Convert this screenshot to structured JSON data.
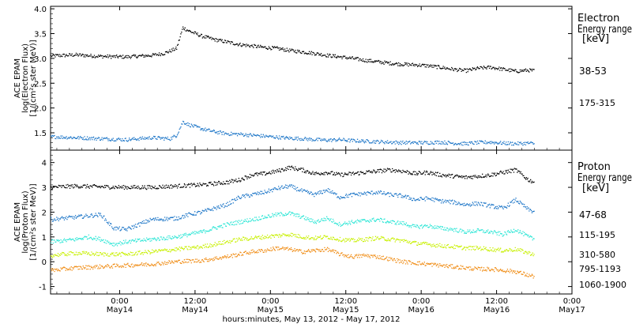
{
  "xlabel": "hours:minutes, May 13, 2012 - May 17, 2012",
  "x_ticks": [
    {
      "hours": 11,
      "time": "0:00",
      "date": "May14"
    },
    {
      "hours": 23,
      "time": "12:00",
      "date": "May14"
    },
    {
      "hours": 35,
      "time": "0:00",
      "date": "May15"
    },
    {
      "hours": 47,
      "time": "12:00",
      "date": "May15"
    },
    {
      "hours": 59,
      "time": "0:00",
      "date": "May16"
    },
    {
      "hours": 71,
      "time": "12:00",
      "date": "May16"
    },
    {
      "hours": 83,
      "time": "0:00",
      "date": "May17"
    }
  ],
  "colors": {
    "black": "#000000",
    "blue": "#1f77c8",
    "cyan": "#2ee6d6",
    "yellowgreen": "#c8f000",
    "orange": "#f08c14"
  },
  "chart_data": [
    {
      "type": "scatter",
      "name": "electron-panel",
      "ylabel": [
        "ACE EPAM",
        "log(Electron Flux)",
        "[1/(cm²s ster MeV)]"
      ],
      "ylim": [
        1.15,
        4.05
      ],
      "y_ticks": [
        "1.5",
        "2.0",
        "2.5",
        "3.0",
        "3.5",
        "4.0"
      ],
      "legend_title": [
        "Electron",
        "Energy range",
        "[keV]"
      ],
      "x_start_hours": 11,
      "x_range_hours": [
        0,
        83
      ],
      "series": [
        {
          "name": "38-53",
          "color": "#000000",
          "x": [
            0,
            4,
            8,
            12,
            16,
            18,
            20,
            21,
            22,
            24,
            26,
            28,
            30,
            32,
            34,
            36,
            38,
            40,
            42,
            44,
            46,
            48,
            50,
            52,
            54,
            56,
            58,
            60,
            62,
            64,
            66,
            68,
            70,
            72,
            74,
            76,
            77
          ],
          "y": [
            3.05,
            3.07,
            3.04,
            3.03,
            3.06,
            3.1,
            3.2,
            3.62,
            3.55,
            3.45,
            3.38,
            3.33,
            3.28,
            3.25,
            3.22,
            3.2,
            3.16,
            3.13,
            3.1,
            3.06,
            3.03,
            3.0,
            2.96,
            2.93,
            2.9,
            2.88,
            2.87,
            2.85,
            2.82,
            2.78,
            2.75,
            2.8,
            2.82,
            2.78,
            2.74,
            2.76,
            2.75
          ]
        },
        {
          "name": "175-315",
          "color": "#1f77c8",
          "x": [
            0,
            4,
            8,
            12,
            16,
            19,
            20,
            21,
            22,
            24,
            26,
            28,
            30,
            32,
            34,
            36,
            38,
            40,
            42,
            44,
            46,
            48,
            50,
            52,
            54,
            56,
            58,
            60,
            62,
            64,
            66,
            68,
            70,
            72,
            74,
            76,
            77
          ],
          "y": [
            1.42,
            1.4,
            1.38,
            1.36,
            1.4,
            1.38,
            1.45,
            1.72,
            1.66,
            1.58,
            1.52,
            1.48,
            1.47,
            1.45,
            1.43,
            1.41,
            1.39,
            1.38,
            1.36,
            1.35,
            1.36,
            1.34,
            1.33,
            1.32,
            1.31,
            1.3,
            1.3,
            1.3,
            1.31,
            1.29,
            1.28,
            1.3,
            1.31,
            1.29,
            1.28,
            1.29,
            1.28
          ]
        }
      ]
    },
    {
      "type": "scatter",
      "name": "proton-panel",
      "ylabel": [
        "ACE EPAM",
        "log(Proton Flux)",
        "[1/(cm²s ster MeV)]"
      ],
      "ylim": [
        -1.3,
        4.5
      ],
      "y_ticks": [
        "-1",
        "0",
        "1",
        "2",
        "3",
        "4"
      ],
      "legend_title": [
        "Proton",
        "Energy range",
        "[keV]"
      ],
      "x_start_hours": 11,
      "x_range_hours": [
        0,
        83
      ],
      "series": [
        {
          "name": "47-68",
          "color": "#000000",
          "x": [
            0,
            4,
            8,
            12,
            16,
            20,
            24,
            28,
            30,
            32,
            34,
            36,
            38,
            40,
            42,
            44,
            46,
            48,
            50,
            52,
            54,
            56,
            58,
            60,
            62,
            64,
            66,
            68,
            70,
            72,
            74,
            76,
            77
          ],
          "y": [
            3.0,
            3.05,
            3.02,
            3.0,
            3.0,
            3.05,
            3.1,
            3.2,
            3.3,
            3.5,
            3.55,
            3.65,
            3.8,
            3.7,
            3.55,
            3.6,
            3.5,
            3.55,
            3.6,
            3.65,
            3.7,
            3.65,
            3.55,
            3.6,
            3.5,
            3.45,
            3.4,
            3.45,
            3.5,
            3.6,
            3.7,
            3.3,
            3.2
          ]
        },
        {
          "name": "115-195",
          "color": "#1f77c8",
          "x": [
            0,
            4,
            8,
            9,
            10,
            12,
            16,
            20,
            22,
            24,
            28,
            30,
            32,
            34,
            36,
            38,
            40,
            42,
            44,
            46,
            48,
            50,
            52,
            54,
            56,
            58,
            60,
            62,
            64,
            66,
            68,
            70,
            72,
            74,
            76,
            77
          ],
          "y": [
            1.7,
            1.8,
            1.9,
            1.6,
            1.35,
            1.3,
            1.7,
            1.75,
            1.9,
            2.0,
            2.3,
            2.6,
            2.7,
            2.8,
            2.95,
            3.05,
            2.85,
            2.7,
            2.9,
            2.6,
            2.7,
            2.75,
            2.8,
            2.7,
            2.65,
            2.5,
            2.55,
            2.45,
            2.4,
            2.3,
            2.35,
            2.25,
            2.15,
            2.5,
            2.1,
            2.0
          ]
        },
        {
          "name": "310-580",
          "color": "#2ee6d6",
          "x": [
            0,
            4,
            6,
            8,
            10,
            12,
            16,
            20,
            24,
            28,
            30,
            32,
            34,
            36,
            38,
            40,
            42,
            44,
            46,
            48,
            50,
            52,
            54,
            56,
            58,
            60,
            62,
            64,
            66,
            68,
            70,
            72,
            74,
            76,
            77
          ],
          "y": [
            0.8,
            0.9,
            1.0,
            0.9,
            0.7,
            0.8,
            0.9,
            1.0,
            1.2,
            1.5,
            1.6,
            1.7,
            1.8,
            1.9,
            1.95,
            1.8,
            1.6,
            1.75,
            1.5,
            1.6,
            1.65,
            1.7,
            1.6,
            1.55,
            1.4,
            1.45,
            1.35,
            1.3,
            1.2,
            1.25,
            1.2,
            1.1,
            1.3,
            1.0,
            0.9
          ]
        },
        {
          "name": "795-1193",
          "color": "#c8f000",
          "x": [
            0,
            4,
            8,
            12,
            16,
            20,
            24,
            28,
            30,
            32,
            34,
            36,
            38,
            40,
            42,
            44,
            46,
            48,
            50,
            52,
            54,
            56,
            58,
            60,
            62,
            64,
            66,
            68,
            70,
            72,
            74,
            76,
            77
          ],
          "y": [
            0.25,
            0.35,
            0.3,
            0.3,
            0.4,
            0.5,
            0.6,
            0.8,
            0.9,
            0.95,
            1.0,
            1.05,
            1.1,
            1.0,
            0.95,
            1.0,
            0.9,
            0.85,
            0.9,
            0.95,
            0.9,
            0.85,
            0.75,
            0.7,
            0.65,
            0.6,
            0.55,
            0.55,
            0.5,
            0.45,
            0.5,
            0.35,
            0.3
          ]
        },
        {
          "name": "1060-1900",
          "color": "#f08c14",
          "x": [
            0,
            4,
            8,
            12,
            16,
            20,
            24,
            28,
            30,
            32,
            34,
            36,
            38,
            40,
            42,
            44,
            46,
            48,
            50,
            52,
            54,
            56,
            58,
            60,
            62,
            64,
            66,
            68,
            70,
            72,
            74,
            76,
            77
          ],
          "y": [
            -0.35,
            -0.25,
            -0.2,
            -0.15,
            -0.1,
            0.0,
            0.05,
            0.2,
            0.3,
            0.4,
            0.45,
            0.55,
            0.5,
            0.4,
            0.45,
            0.5,
            0.3,
            0.2,
            0.25,
            0.2,
            0.1,
            0.0,
            -0.05,
            -0.1,
            -0.15,
            -0.2,
            -0.25,
            -0.3,
            -0.3,
            -0.35,
            -0.4,
            -0.55,
            -0.6
          ]
        }
      ]
    }
  ]
}
